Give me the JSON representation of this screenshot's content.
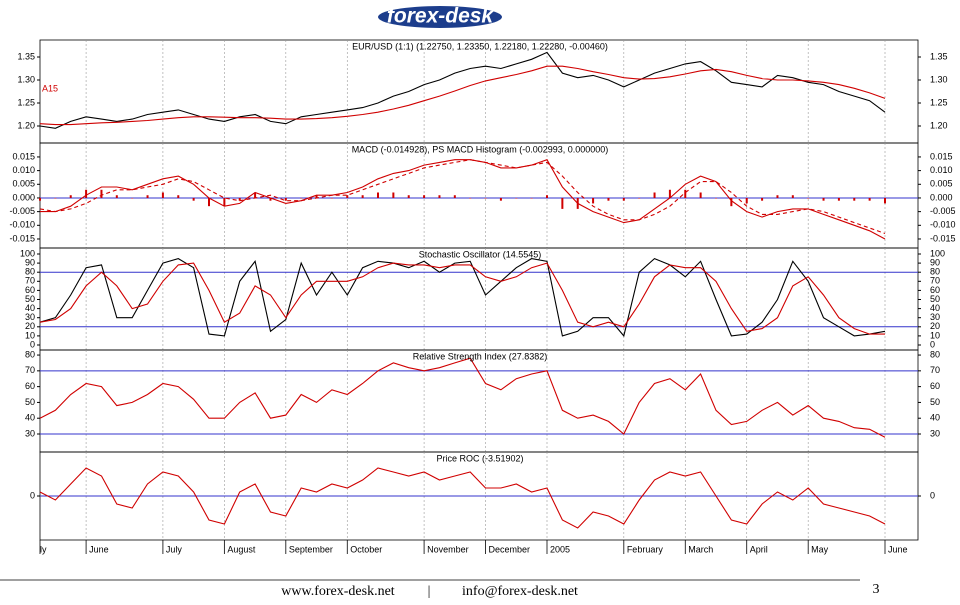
{
  "header": {
    "logo": "forex-desk"
  },
  "footer": {
    "website": "www.forex-desk.net",
    "separator": "|",
    "email": "info@forex-desk.net",
    "page": "3"
  },
  "chart_data": [
    {
      "type": "line",
      "title": "EUR/USD (1:1) (1.22750, 1.23350, 1.22180, 1.22280, -0.00460)",
      "annotation": "A15",
      "ylim": [
        1.163,
        1.387
      ],
      "yticks": [
        {
          "value": 1.2,
          "label": "1.20"
        },
        {
          "value": 1.25,
          "label": "1.25"
        },
        {
          "value": 1.3,
          "label": "1.30"
        },
        {
          "value": 1.35,
          "label": "1.35"
        }
      ],
      "series": [
        {
          "color": "#000000",
          "style": "solid",
          "values": [
            1.2,
            1.195,
            1.21,
            1.22,
            1.215,
            1.21,
            1.215,
            1.225,
            1.23,
            1.235,
            1.225,
            1.215,
            1.21,
            1.22,
            1.225,
            1.21,
            1.205,
            1.22,
            1.225,
            1.23,
            1.235,
            1.24,
            1.25,
            1.265,
            1.275,
            1.29,
            1.3,
            1.315,
            1.325,
            1.33,
            1.325,
            1.335,
            1.345,
            1.36,
            1.315,
            1.305,
            1.31,
            1.3,
            1.285,
            1.3,
            1.315,
            1.325,
            1.335,
            1.34,
            1.32,
            1.295,
            1.29,
            1.285,
            1.31,
            1.305,
            1.295,
            1.29,
            1.275,
            1.265,
            1.255,
            1.23
          ]
        },
        {
          "color": "#d00000",
          "style": "solid",
          "values": [
            1.205,
            1.203,
            1.203,
            1.205,
            1.207,
            1.208,
            1.21,
            1.212,
            1.215,
            1.218,
            1.22,
            1.22,
            1.219,
            1.218,
            1.218,
            1.217,
            1.215,
            1.215,
            1.216,
            1.218,
            1.221,
            1.225,
            1.23,
            1.237,
            1.245,
            1.255,
            1.265,
            1.276,
            1.288,
            1.298,
            1.305,
            1.312,
            1.32,
            1.33,
            1.33,
            1.325,
            1.318,
            1.312,
            1.305,
            1.302,
            1.303,
            1.307,
            1.313,
            1.32,
            1.323,
            1.318,
            1.31,
            1.303,
            1.3,
            1.3,
            1.298,
            1.295,
            1.29,
            1.282,
            1.272,
            1.26
          ]
        }
      ]
    },
    {
      "type": "line",
      "title": "MACD (-0.014928), PS MACD Histogram (-0.002993, 0.000000)",
      "ylim": [
        -0.0183,
        0.0201
      ],
      "yticks": [
        {
          "value": -0.015,
          "label": "-0.015"
        },
        {
          "value": -0.01,
          "label": "-0.010"
        },
        {
          "value": -0.005,
          "label": "-0.005"
        },
        {
          "value": 0,
          "label": "0.000"
        },
        {
          "value": 0.005,
          "label": "0.005"
        },
        {
          "value": 0.01,
          "label": "0.010"
        },
        {
          "value": 0.015,
          "label": "0.015"
        }
      ],
      "levels": [
        0
      ],
      "level_color": "#3333cc",
      "series": [
        {
          "color": "#d00000",
          "style": "bars",
          "values": [
            -0.001,
            0,
            0.001,
            0.003,
            0.003,
            0.001,
            0,
            0.001,
            0.002,
            0.001,
            -0.001,
            -0.003,
            -0.003,
            -0.001,
            0.002,
            -0.001,
            -0.001,
            0,
            0.001,
            0,
            0.001,
            0.001,
            0.002,
            0.002,
            0.001,
            0.001,
            0.001,
            0.001,
            0,
            0,
            -0.001,
            0,
            0,
            0.001,
            -0.004,
            -0.004,
            -0.002,
            -0.001,
            -0.001,
            0,
            0.002,
            0.003,
            0.003,
            0.002,
            0,
            -0.003,
            -0.002,
            -0.001,
            0.001,
            0.001,
            0,
            -0.001,
            -0.001,
            -0.001,
            -0.001,
            -0.002
          ]
        },
        {
          "color": "#d00000",
          "style": "solid",
          "values": [
            -0.005,
            -0.005,
            -0.003,
            0.001,
            0.004,
            0.004,
            0.003,
            0.005,
            0.007,
            0.008,
            0.005,
            0,
            -0.003,
            -0.002,
            0.002,
            0,
            -0.002,
            -0.001,
            0.001,
            0.001,
            0.002,
            0.004,
            0.007,
            0.009,
            0.01,
            0.012,
            0.013,
            0.014,
            0.014,
            0.013,
            0.011,
            0.011,
            0.012,
            0.014,
            0.004,
            -0.002,
            -0.005,
            -0.007,
            -0.009,
            -0.008,
            -0.004,
            0,
            0.005,
            0.008,
            0.006,
            -0.001,
            -0.005,
            -0.007,
            -0.005,
            -0.004,
            -0.004,
            -0.006,
            -0.008,
            -0.01,
            -0.012,
            -0.015
          ]
        },
        {
          "color": "#d00000",
          "style": "dashed",
          "values": [
            -0.004,
            -0.005,
            -0.004,
            -0.002,
            0.001,
            0.003,
            0.003,
            0.004,
            0.005,
            0.007,
            0.006,
            0.003,
            0,
            -0.001,
            0,
            0.001,
            -0.001,
            -0.001,
            0,
            0.001,
            0.001,
            0.003,
            0.005,
            0.007,
            0.009,
            0.011,
            0.012,
            0.013,
            0.014,
            0.013,
            0.012,
            0.011,
            0.012,
            0.013,
            0.008,
            0.002,
            -0.003,
            -0.006,
            -0.008,
            -0.008,
            -0.006,
            -0.003,
            0.002,
            0.006,
            0.006,
            0.002,
            -0.003,
            -0.006,
            -0.006,
            -0.005,
            -0.004,
            -0.005,
            -0.007,
            -0.009,
            -0.011,
            -0.013
          ]
        }
      ]
    },
    {
      "type": "line",
      "title": "Stochastic Oscillator (14.5545)",
      "ylim": [
        -5.5,
        106.6
      ],
      "yticks": [
        0,
        10,
        20,
        30,
        40,
        50,
        60,
        70,
        80,
        90,
        100
      ],
      "levels": [
        80,
        20
      ],
      "level_color": "#3333cc",
      "series": [
        {
          "color": "#000000",
          "style": "solid",
          "values": [
            25,
            30,
            55,
            85,
            88,
            30,
            30,
            60,
            90,
            95,
            85,
            12,
            10,
            70,
            92,
            15,
            28,
            90,
            55,
            80,
            55,
            85,
            92,
            90,
            85,
            92,
            80,
            90,
            92,
            55,
            70,
            85,
            95,
            92,
            10,
            15,
            30,
            30,
            10,
            80,
            95,
            88,
            75,
            92,
            50,
            10,
            12,
            25,
            50,
            92,
            70,
            30,
            20,
            10,
            12,
            15
          ]
        },
        {
          "color": "#d00000",
          "style": "solid",
          "values": [
            25,
            28,
            40,
            65,
            80,
            65,
            40,
            45,
            70,
            88,
            90,
            60,
            25,
            35,
            65,
            55,
            30,
            55,
            70,
            70,
            70,
            75,
            85,
            90,
            88,
            88,
            85,
            88,
            88,
            75,
            70,
            75,
            85,
            90,
            60,
            25,
            20,
            25,
            20,
            45,
            75,
            88,
            85,
            85,
            70,
            40,
            15,
            18,
            30,
            65,
            75,
            55,
            30,
            18,
            12,
            12
          ]
        }
      ]
    },
    {
      "type": "line",
      "title": "Relative Strength Index (27.8382)",
      "ylim": [
        18.6,
        83.2
      ],
      "yticks": [
        30,
        40,
        50,
        60,
        70,
        80
      ],
      "levels": [
        70,
        30
      ],
      "level_color": "#3333cc",
      "series": [
        {
          "color": "#d00000",
          "style": "solid",
          "values": [
            40,
            45,
            55,
            62,
            60,
            48,
            50,
            55,
            62,
            60,
            52,
            40,
            40,
            50,
            56,
            40,
            42,
            55,
            50,
            58,
            55,
            62,
            70,
            75,
            72,
            70,
            72,
            75,
            78,
            62,
            58,
            65,
            68,
            70,
            45,
            40,
            42,
            38,
            30,
            50,
            62,
            65,
            58,
            68,
            45,
            36,
            38,
            45,
            50,
            42,
            48,
            40,
            38,
            34,
            33,
            28
          ]
        }
      ]
    },
    {
      "type": "line",
      "title": "Price ROC (-3.51902)",
      "ylim": [
        -5.5,
        5.5
      ],
      "yticks": [
        0
      ],
      "levels": [
        0
      ],
      "level_color": "#3333cc",
      "categories": [
        "ly",
        null,
        null,
        "June",
        null,
        null,
        null,
        null,
        "July",
        null,
        null,
        null,
        "August",
        null,
        null,
        null,
        "September",
        null,
        null,
        null,
        "October",
        null,
        null,
        null,
        null,
        "November",
        null,
        null,
        null,
        "December",
        null,
        null,
        null,
        "2005",
        null,
        null,
        null,
        null,
        "February",
        null,
        null,
        null,
        "March",
        null,
        null,
        null,
        "April",
        null,
        null,
        null,
        "May",
        null,
        null,
        null,
        null,
        "June"
      ],
      "series": [
        {
          "color": "#d00000",
          "style": "solid",
          "values": [
            0.5,
            -0.5,
            1.5,
            3.5,
            2.5,
            -1,
            -1.5,
            1.5,
            3,
            2.5,
            0.5,
            -3,
            -3.5,
            0.5,
            1.5,
            -2,
            -2.5,
            1,
            0.5,
            1.5,
            1,
            2,
            3.5,
            3,
            2.5,
            3,
            2,
            2.5,
            3,
            1,
            1,
            1.5,
            0.5,
            1,
            -3,
            -4,
            -2,
            -2.5,
            -3.5,
            -0.5,
            2,
            3,
            2.5,
            3,
            0,
            -3,
            -3.5,
            -1,
            0.5,
            -0.5,
            1,
            -1,
            -1.5,
            -2,
            -2.5,
            -3.5
          ]
        }
      ]
    }
  ]
}
